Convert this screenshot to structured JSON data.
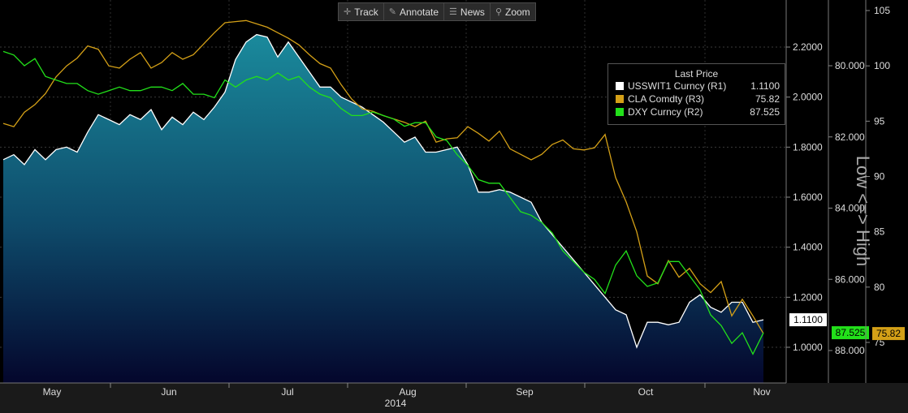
{
  "toolbar": {
    "track": "Track",
    "annotate": "Annotate",
    "news": "News",
    "zoom": "Zoom"
  },
  "legend": {
    "title": "Last Price",
    "items": [
      {
        "name": "USSWIT1 Curncy  (R1)",
        "value": "1.1100",
        "color": "#ffffff"
      },
      {
        "name": "CLA Comdty  (R3)",
        "value": "75.82",
        "color": "#d4a017"
      },
      {
        "name": "DXY Curncy  (R2)",
        "value": "87.525",
        "color": "#22e01a"
      }
    ]
  },
  "side_label": "Low <=> High",
  "badges": {
    "r1": "1.1100",
    "r2": "87.525",
    "r3": "75.82"
  },
  "chart_data": {
    "type": "line",
    "x_tick_labels": [
      "May",
      "Jun",
      "Jul",
      "Aug",
      "Sep",
      "Oct",
      "Nov"
    ],
    "x_year_label": "2014",
    "axes": {
      "r1": {
        "min": 0.85,
        "max": 2.35,
        "ticks": [
          "1.0000",
          "1.2000",
          "1.4000",
          "1.6000",
          "1.8000",
          "2.0000",
          "2.2000"
        ],
        "inverted": false
      },
      "r2": {
        "min": 78.5,
        "max": 90.0,
        "ticks": [
          "80.000",
          "82.000",
          "84.000",
          "86.000",
          "88.000"
        ],
        "inverted": true
      },
      "r3": {
        "min": 70.3,
        "max": 105.4,
        "ticks": [
          "75",
          "80",
          "85",
          "90",
          "95",
          "100",
          "105"
        ],
        "inverted": false
      }
    },
    "series": [
      {
        "name": "USSWIT1 Curncy",
        "axis": "r1",
        "color": "#ffffff",
        "style": "area",
        "values": [
          1.75,
          1.77,
          1.73,
          1.79,
          1.75,
          1.79,
          1.8,
          1.78,
          1.86,
          1.93,
          1.91,
          1.89,
          1.93,
          1.91,
          1.95,
          1.87,
          1.92,
          1.89,
          1.94,
          1.91,
          1.96,
          2.02,
          2.15,
          2.22,
          2.25,
          2.24,
          2.16,
          2.22,
          2.16,
          2.1,
          2.04,
          2.04,
          2.0,
          1.98,
          1.96,
          1.93,
          1.9,
          1.86,
          1.82,
          1.84,
          1.78,
          1.78,
          1.79,
          1.8,
          1.73,
          1.62,
          1.62,
          1.63,
          1.62,
          1.6,
          1.58,
          1.5,
          1.45,
          1.4,
          1.35,
          1.3,
          1.25,
          1.2,
          1.15,
          1.13,
          1.0,
          1.1,
          1.1,
          1.09,
          1.1,
          1.18,
          1.21,
          1.16,
          1.14,
          1.18,
          1.18,
          1.1,
          1.11
        ]
      },
      {
        "name": "CLA Comdty",
        "axis": "r3",
        "color": "#d4a017",
        "style": "line",
        "values": [
          94.8,
          94.5,
          95.8,
          96.5,
          97.5,
          99.0,
          100.0,
          100.7,
          101.8,
          101.5,
          100.0,
          99.8,
          100.6,
          101.2,
          99.8,
          100.3,
          101.2,
          100.6,
          101.0,
          102.0,
          103.0,
          103.9,
          104.0,
          104.1,
          103.8,
          103.5,
          103.0,
          102.5,
          101.9,
          101.0,
          100.2,
          99.8,
          98.3,
          97.0,
          96.1,
          95.9,
          95.5,
          95.2,
          94.9,
          94.5,
          95.0,
          93.1,
          93.4,
          93.5,
          94.5,
          93.9,
          93.2,
          94.1,
          92.5,
          92.0,
          91.5,
          92.0,
          92.9,
          93.3,
          92.5,
          92.4,
          92.6,
          93.8,
          89.9,
          87.7,
          85.0,
          81.0,
          80.3,
          82.4,
          80.9,
          81.7,
          80.3,
          79.5,
          80.5,
          77.4,
          78.9,
          77.4,
          75.8
        ]
      },
      {
        "name": "DXY Curncy",
        "axis": "r2",
        "color": "#22e01a",
        "style": "line",
        "values": [
          79.6,
          79.7,
          80.0,
          79.8,
          80.3,
          80.4,
          80.5,
          80.5,
          80.7,
          80.8,
          80.7,
          80.6,
          80.7,
          80.7,
          80.6,
          80.6,
          80.7,
          80.5,
          80.8,
          80.8,
          80.9,
          80.4,
          80.6,
          80.4,
          80.3,
          80.4,
          80.2,
          80.4,
          80.3,
          80.6,
          80.8,
          80.9,
          81.2,
          81.4,
          81.4,
          81.3,
          81.4,
          81.5,
          81.7,
          81.6,
          81.6,
          82.0,
          82.1,
          82.5,
          82.8,
          83.2,
          83.3,
          83.3,
          83.7,
          84.1,
          84.2,
          84.4,
          84.7,
          85.2,
          85.5,
          85.8,
          86.0,
          86.4,
          85.6,
          85.2,
          85.9,
          86.2,
          86.1,
          85.5,
          85.5,
          85.9,
          86.3,
          87.0,
          87.3,
          87.8,
          87.5,
          88.1,
          87.5
        ]
      }
    ]
  }
}
